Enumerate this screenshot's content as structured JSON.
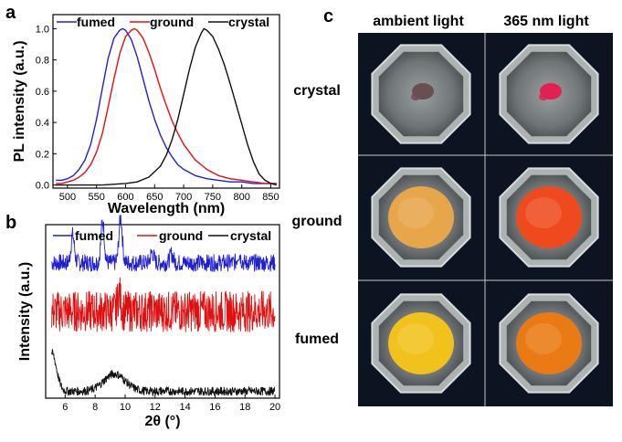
{
  "panels": {
    "a": "a",
    "b": "b",
    "c": "c"
  },
  "chart_data": [
    {
      "type": "line",
      "panel": "a",
      "title": "",
      "xlabel": "Wavelength (nm)",
      "ylabel": "PL intensity (a.u.)",
      "xlim": [
        475,
        865
      ],
      "ylim": [
        -0.02,
        1.09
      ],
      "xticks": [
        500,
        550,
        600,
        650,
        700,
        750,
        800,
        850
      ],
      "yticks": [
        0.0,
        0.2,
        0.4,
        0.6,
        0.8,
        1.0
      ],
      "ytick_labels": [
        "0.0",
        "0.2",
        "0.4",
        "0.6",
        "0.8",
        "1.0"
      ],
      "legend_position": "top",
      "series": [
        {
          "name": "fumed",
          "color": "#1f1fd6",
          "x": [
            480,
            490,
            500,
            510,
            520,
            530,
            540,
            550,
            560,
            570,
            580,
            590,
            595,
            600,
            610,
            620,
            630,
            640,
            650,
            660,
            670,
            680,
            690,
            700,
            720,
            740,
            760,
            780,
            800,
            820,
            840,
            860
          ],
          "y": [
            0.03,
            0.03,
            0.04,
            0.06,
            0.1,
            0.16,
            0.26,
            0.42,
            0.62,
            0.81,
            0.94,
            0.99,
            1.0,
            0.99,
            0.93,
            0.82,
            0.68,
            0.54,
            0.42,
            0.32,
            0.24,
            0.18,
            0.13,
            0.1,
            0.06,
            0.04,
            0.03,
            0.02,
            0.02,
            0.01,
            0.01,
            0.01
          ]
        },
        {
          "name": "ground",
          "color": "#e01010",
          "x": [
            480,
            490,
            500,
            510,
            520,
            530,
            540,
            550,
            560,
            570,
            580,
            590,
            600,
            610,
            615,
            620,
            630,
            640,
            650,
            660,
            670,
            680,
            690,
            700,
            720,
            740,
            760,
            780,
            800,
            820,
            840,
            860
          ],
          "y": [
            0.01,
            0.01,
            0.02,
            0.03,
            0.05,
            0.08,
            0.13,
            0.21,
            0.33,
            0.5,
            0.68,
            0.84,
            0.95,
            0.99,
            1.0,
            0.99,
            0.94,
            0.85,
            0.74,
            0.62,
            0.51,
            0.41,
            0.33,
            0.26,
            0.16,
            0.1,
            0.06,
            0.04,
            0.03,
            0.02,
            0.01,
            0.01
          ]
        },
        {
          "name": "crystal",
          "color": "#111111",
          "x": [
            480,
            560,
            600,
            620,
            640,
            660,
            670,
            680,
            690,
            700,
            710,
            720,
            730,
            735,
            740,
            750,
            760,
            770,
            780,
            790,
            800,
            810,
            820,
            830,
            840,
            850,
            860
          ],
          "y": [
            0.0,
            0.0,
            0.01,
            0.02,
            0.05,
            0.12,
            0.19,
            0.29,
            0.42,
            0.58,
            0.74,
            0.88,
            0.97,
            1.0,
            0.99,
            0.95,
            0.87,
            0.77,
            0.65,
            0.52,
            0.39,
            0.26,
            0.15,
            0.07,
            0.03,
            0.01,
            0.0
          ]
        }
      ]
    },
    {
      "type": "line",
      "panel": "b",
      "title": "",
      "xlabel": "2θ (°)",
      "ylabel": "Intensity (a.u.)",
      "xlim": [
        4.7,
        20.3
      ],
      "xticks": [
        6,
        8,
        10,
        12,
        14,
        16,
        18,
        20
      ],
      "yaxis_numbers_shown": false,
      "legend_position": "top",
      "series": [
        {
          "name": "fumed",
          "color": "#1f1fd6",
          "baseline_y": 0.78,
          "noise": 0.05,
          "peaks": [
            [
              6.5,
              0.16
            ],
            [
              8.5,
              0.24
            ],
            [
              9.7,
              0.26
            ],
            [
              11.8,
              0.06
            ],
            [
              13.1,
              0.05
            ],
            [
              17.6,
              0.05
            ]
          ]
        },
        {
          "name": "ground",
          "color": "#e01010",
          "baseline_y": 0.5,
          "noise": 0.12,
          "peaks": [
            [
              9.6,
              0.1
            ]
          ]
        },
        {
          "name": "crystal",
          "color": "#111111",
          "baseline_y": 0.04,
          "noise": 0.025,
          "peaks": [
            [
              5.1,
              0.22
            ],
            [
              9.3,
              0.1
            ]
          ]
        }
      ]
    }
  ],
  "photos": {
    "column_headers": [
      "ambient light",
      "365 nm light"
    ],
    "row_labels": [
      "crystal",
      "ground",
      "fumed"
    ],
    "background_color": "#0b1420",
    "samples": [
      [
        {
          "color": "#6a4f52",
          "size": "small"
        },
        {
          "color": "#e3204f",
          "size": "small"
        }
      ],
      [
        {
          "color": "#e8a64a",
          "size": "large"
        },
        {
          "color": "#ee4a1e",
          "size": "large"
        }
      ],
      [
        {
          "color": "#f2c21c",
          "size": "large"
        },
        {
          "color": "#ea7a14",
          "size": "large"
        }
      ]
    ]
  }
}
